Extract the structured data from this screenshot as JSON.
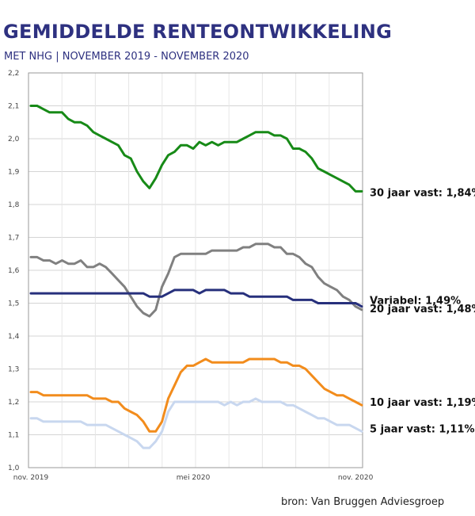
{
  "header": {
    "title": "GEMIDDELDE RENTEONTWIKKELING",
    "subtitle": "MET NHG | NOVEMBER 2019 - NOVEMBER 2020"
  },
  "footer": {
    "source": "bron: Van Bruggen Adviesgroep"
  },
  "chart_data": {
    "type": "line",
    "title": "GEMIDDELDE RENTEONTWIKKELING",
    "subtitle": "MET NHG | NOVEMBER 2019 - NOVEMBER 2020",
    "xlabel": "",
    "ylabel": "",
    "ylim": [
      1.0,
      2.2
    ],
    "y_ticks": [
      "1,0",
      "1,1",
      "1,2",
      "1,3",
      "1,4",
      "1,5",
      "1,6",
      "1,7",
      "1,8",
      "1,9",
      "2,0",
      "2,1",
      "2,2"
    ],
    "x_ticks": [
      {
        "index": 0,
        "label": "nov. 2019"
      },
      {
        "index": 26,
        "label": "mei 2020"
      },
      {
        "index": 52,
        "label": "nov. 2020"
      }
    ],
    "grid": true,
    "legend": "none",
    "series": [
      {
        "color": "#178a17",
        "values": [
          2.1,
          2.1,
          2.09,
          2.08,
          2.08,
          2.08,
          2.06,
          2.05,
          2.05,
          2.04,
          2.02,
          2.01,
          2.0,
          1.99,
          1.98,
          1.95,
          1.94,
          1.9,
          1.87,
          1.85,
          1.88,
          1.92,
          1.95,
          1.96,
          1.98,
          1.98,
          1.97,
          1.99,
          1.98,
          1.99,
          1.98,
          1.99,
          1.99,
          1.99,
          2.0,
          2.01,
          2.02,
          2.02,
          2.02,
          2.01,
          2.01,
          2.0,
          1.97,
          1.97,
          1.96,
          1.94,
          1.91,
          1.9,
          1.89,
          1.88,
          1.87,
          1.86,
          1.84,
          1.84
        ]
      },
      {
        "color": "#808080",
        "values": [
          1.64,
          1.64,
          1.63,
          1.63,
          1.62,
          1.63,
          1.62,
          1.62,
          1.63,
          1.61,
          1.61,
          1.62,
          1.61,
          1.59,
          1.57,
          1.55,
          1.52,
          1.49,
          1.47,
          1.46,
          1.48,
          1.55,
          1.59,
          1.64,
          1.65,
          1.65,
          1.65,
          1.65,
          1.65,
          1.66,
          1.66,
          1.66,
          1.66,
          1.66,
          1.67,
          1.67,
          1.68,
          1.68,
          1.68,
          1.67,
          1.67,
          1.65,
          1.65,
          1.64,
          1.62,
          1.61,
          1.58,
          1.56,
          1.55,
          1.54,
          1.52,
          1.51,
          1.49,
          1.48
        ]
      },
      {
        "color": "#27307c",
        "values": [
          1.53,
          1.53,
          1.53,
          1.53,
          1.53,
          1.53,
          1.53,
          1.53,
          1.53,
          1.53,
          1.53,
          1.53,
          1.53,
          1.53,
          1.53,
          1.53,
          1.53,
          1.53,
          1.53,
          1.52,
          1.52,
          1.52,
          1.53,
          1.54,
          1.54,
          1.54,
          1.54,
          1.53,
          1.54,
          1.54,
          1.54,
          1.54,
          1.53,
          1.53,
          1.53,
          1.52,
          1.52,
          1.52,
          1.52,
          1.52,
          1.52,
          1.52,
          1.51,
          1.51,
          1.51,
          1.51,
          1.5,
          1.5,
          1.5,
          1.5,
          1.5,
          1.5,
          1.5,
          1.49
        ]
      },
      {
        "color": "#f28c1c",
        "values": [
          1.23,
          1.23,
          1.22,
          1.22,
          1.22,
          1.22,
          1.22,
          1.22,
          1.22,
          1.22,
          1.21,
          1.21,
          1.21,
          1.2,
          1.2,
          1.18,
          1.17,
          1.16,
          1.14,
          1.11,
          1.11,
          1.14,
          1.21,
          1.25,
          1.29,
          1.31,
          1.31,
          1.32,
          1.33,
          1.32,
          1.32,
          1.32,
          1.32,
          1.32,
          1.32,
          1.33,
          1.33,
          1.33,
          1.33,
          1.33,
          1.32,
          1.32,
          1.31,
          1.31,
          1.3,
          1.28,
          1.26,
          1.24,
          1.23,
          1.22,
          1.22,
          1.21,
          1.2,
          1.19
        ]
      },
      {
        "color": "#c8d7ef",
        "values": [
          1.15,
          1.15,
          1.14,
          1.14,
          1.14,
          1.14,
          1.14,
          1.14,
          1.14,
          1.13,
          1.13,
          1.13,
          1.13,
          1.12,
          1.11,
          1.1,
          1.09,
          1.08,
          1.06,
          1.06,
          1.08,
          1.11,
          1.17,
          1.2,
          1.2,
          1.2,
          1.2,
          1.2,
          1.2,
          1.2,
          1.2,
          1.19,
          1.2,
          1.19,
          1.2,
          1.2,
          1.21,
          1.2,
          1.2,
          1.2,
          1.2,
          1.19,
          1.19,
          1.18,
          1.17,
          1.16,
          1.15,
          1.15,
          1.14,
          1.13,
          1.13,
          1.13,
          1.12,
          1.11
        ]
      }
    ],
    "annotations": [
      {
        "text": "30 jaar vast: 1,84%",
        "value": 1.84
      },
      {
        "text": "Variabel: 1,49%",
        "value": 1.49
      },
      {
        "text": "20 jaar vast: 1,48%",
        "value": 1.48
      },
      {
        "text": "10 jaar vast: 1,19%",
        "value": 1.19
      },
      {
        "text": "5 jaar vast: 1,11%",
        "value": 1.11
      }
    ]
  }
}
